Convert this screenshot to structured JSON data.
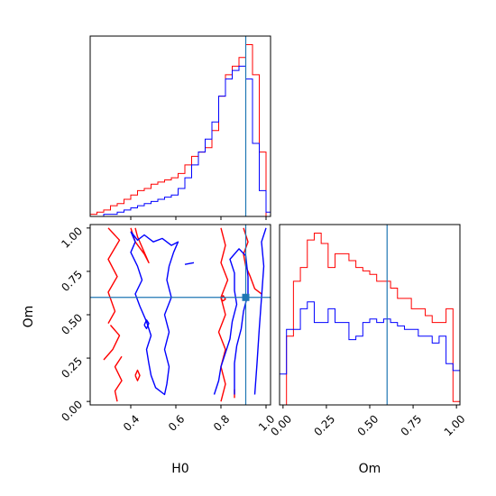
{
  "chart_data": {
    "type": "corner",
    "parameters": [
      "H0",
      "Om"
    ],
    "truth": {
      "H0": 0.91,
      "Om": 0.6
    },
    "colors": {
      "red": "#ff0000",
      "blue": "#0000ff",
      "truth": "#1f77b4"
    },
    "axes": {
      "H0": {
        "label": "H0",
        "lim": [
          0.22,
          1.02
        ],
        "ticks": [
          0.4,
          0.6,
          0.8,
          1.0
        ],
        "tick_labels": [
          "0.4",
          "0.6",
          "0.8",
          "1.0"
        ]
      },
      "Om": {
        "label": "Om",
        "lim": [
          -0.02,
          1.02
        ],
        "ticks": [
          0.0,
          0.25,
          0.5,
          0.75,
          1.0
        ],
        "tick_labels": [
          "0.00",
          "0.25",
          "0.50",
          "0.75",
          "1.00"
        ]
      }
    },
    "hist_H0": {
      "bin_edges": [
        0.22,
        0.25,
        0.28,
        0.31,
        0.34,
        0.37,
        0.4,
        0.43,
        0.46,
        0.49,
        0.52,
        0.55,
        0.58,
        0.61,
        0.64,
        0.67,
        0.7,
        0.73,
        0.76,
        0.79,
        0.82,
        0.85,
        0.88,
        0.91,
        0.94,
        0.97,
        1.0,
        1.02
      ],
      "series": [
        {
          "color": "red",
          "values": [
            1,
            2,
            3,
            5,
            6,
            8,
            10,
            12,
            13,
            15,
            16,
            17,
            18,
            20,
            24,
            28,
            30,
            32,
            40,
            56,
            66,
            70,
            74,
            80,
            66,
            30,
            0
          ]
        },
        {
          "color": "blue",
          "values": [
            0,
            0,
            1,
            1,
            2,
            3,
            4,
            5,
            6,
            7,
            8,
            9,
            10,
            13,
            18,
            24,
            30,
            36,
            44,
            56,
            64,
            68,
            70,
            64,
            34,
            12,
            2
          ]
        }
      ]
    },
    "hist_Om": {
      "bin_edges": [
        -0.02,
        0.02,
        0.06,
        0.1,
        0.14,
        0.18,
        0.22,
        0.26,
        0.3,
        0.34,
        0.38,
        0.42,
        0.46,
        0.5,
        0.54,
        0.58,
        0.62,
        0.66,
        0.7,
        0.74,
        0.78,
        0.82,
        0.86,
        0.9,
        0.94,
        0.98,
        1.02
      ],
      "series": [
        {
          "color": "red",
          "values": [
            0,
            20,
            36,
            40,
            48,
            50,
            47,
            40,
            44,
            44,
            42,
            40,
            39,
            38,
            36,
            36,
            34,
            31,
            31,
            28,
            28,
            26,
            24,
            24,
            28,
            1
          ]
        },
        {
          "color": "blue",
          "values": [
            9,
            22,
            22,
            28,
            30,
            24,
            24,
            28,
            24,
            24,
            19,
            20,
            24,
            25,
            24,
            25,
            24,
            23,
            22,
            22,
            20,
            20,
            18,
            20,
            12,
            10
          ]
        }
      ]
    },
    "contours": [
      {
        "color": "red",
        "paths": [
          [
            [
              0.3,
              0.45
            ],
            [
              0.33,
              0.52
            ],
            [
              0.3,
              0.63
            ],
            [
              0.34,
              0.72
            ],
            [
              0.3,
              0.82
            ],
            [
              0.35,
              0.93
            ],
            [
              0.3,
              1.0
            ]
          ],
          [
            [
              0.28,
              0.24
            ],
            [
              0.32,
              0.3
            ],
            [
              0.35,
              0.38
            ],
            [
              0.31,
              0.44
            ]
          ],
          [
            [
              0.34,
              0.0
            ],
            [
              0.33,
              0.06
            ],
            [
              0.36,
              0.12
            ],
            [
              0.33,
              0.2
            ],
            [
              0.36,
              0.26
            ]
          ],
          [
            [
              0.42,
              0.15
            ],
            [
              0.43,
              0.12
            ],
            [
              0.44,
              0.15
            ],
            [
              0.43,
              0.18
            ],
            [
              0.42,
              0.15
            ]
          ],
          [
            [
              0.4,
              1.0
            ],
            [
              0.42,
              0.92
            ],
            [
              0.46,
              0.85
            ],
            [
              0.48,
              0.8
            ],
            [
              0.46,
              0.86
            ],
            [
              0.43,
              0.95
            ],
            [
              0.42,
              1.0
            ]
          ],
          [
            [
              0.8,
              1.0
            ],
            [
              0.82,
              0.9
            ],
            [
              0.8,
              0.8
            ],
            [
              0.83,
              0.7
            ],
            [
              0.8,
              0.6
            ],
            [
              0.82,
              0.5
            ],
            [
              0.79,
              0.4
            ],
            [
              0.82,
              0.3
            ],
            [
              0.8,
              0.2
            ],
            [
              0.82,
              0.1
            ],
            [
              0.8,
              0.0
            ]
          ],
          [
            [
              0.9,
              1.0
            ],
            [
              0.92,
              0.92
            ],
            [
              0.9,
              0.85
            ],
            [
              0.91,
              0.78
            ],
            [
              0.93,
              0.72
            ],
            [
              0.95,
              0.65
            ],
            [
              0.98,
              0.62
            ]
          ],
          [
            [
              0.8,
              0.59
            ],
            [
              0.81,
              0.58
            ],
            [
              0.82,
              0.59
            ],
            [
              0.81,
              0.61
            ],
            [
              0.8,
              0.59
            ]
          ],
          [
            [
              0.86,
              0.02
            ],
            [
              0.86,
              0.07
            ]
          ]
        ]
      },
      {
        "color": "blue",
        "paths": [
          [
            [
              0.4,
              0.98
            ],
            [
              0.43,
              0.93
            ],
            [
              0.46,
              0.96
            ],
            [
              0.5,
              0.92
            ],
            [
              0.54,
              0.94
            ],
            [
              0.58,
              0.9
            ],
            [
              0.61,
              0.92
            ],
            [
              0.59,
              0.86
            ],
            [
              0.57,
              0.78
            ],
            [
              0.56,
              0.7
            ],
            [
              0.58,
              0.6
            ],
            [
              0.55,
              0.5
            ],
            [
              0.57,
              0.4
            ],
            [
              0.55,
              0.3
            ],
            [
              0.57,
              0.2
            ],
            [
              0.56,
              0.1
            ],
            [
              0.55,
              0.04
            ],
            [
              0.51,
              0.08
            ],
            [
              0.49,
              0.15
            ],
            [
              0.48,
              0.22
            ],
            [
              0.47,
              0.3
            ],
            [
              0.49,
              0.38
            ],
            [
              0.47,
              0.46
            ],
            [
              0.44,
              0.55
            ],
            [
              0.42,
              0.62
            ],
            [
              0.45,
              0.7
            ],
            [
              0.43,
              0.78
            ],
            [
              0.4,
              0.86
            ],
            [
              0.42,
              0.92
            ],
            [
              0.4,
              0.98
            ]
          ],
          [
            [
              0.46,
              0.44
            ],
            [
              0.47,
              0.42
            ],
            [
              0.48,
              0.45
            ],
            [
              0.47,
              0.47
            ],
            [
              0.46,
              0.44
            ]
          ],
          [
            [
              0.64,
              0.79
            ],
            [
              0.68,
              0.8
            ]
          ],
          [
            [
              0.77,
              0.04
            ],
            [
              0.79,
              0.12
            ],
            [
              0.8,
              0.2
            ],
            [
              0.82,
              0.28
            ],
            [
              0.84,
              0.36
            ],
            [
              0.85,
              0.46
            ],
            [
              0.87,
              0.56
            ],
            [
              0.86,
              0.64
            ],
            [
              0.86,
              0.74
            ],
            [
              0.84,
              0.82
            ],
            [
              0.88,
              0.88
            ],
            [
              0.91,
              0.84
            ],
            [
              0.92,
              0.72
            ],
            [
              0.92,
              0.62
            ],
            [
              0.9,
              0.52
            ],
            [
              0.89,
              0.42
            ],
            [
              0.87,
              0.32
            ],
            [
              0.86,
              0.22
            ],
            [
              0.86,
              0.12
            ],
            [
              0.86,
              0.04
            ]
          ],
          [
            [
              0.95,
              0.04
            ],
            [
              0.96,
              0.22
            ],
            [
              0.97,
              0.42
            ],
            [
              0.98,
              0.6
            ],
            [
              0.99,
              0.78
            ],
            [
              0.98,
              0.92
            ],
            [
              1.0,
              1.0
            ]
          ]
        ]
      }
    ]
  }
}
